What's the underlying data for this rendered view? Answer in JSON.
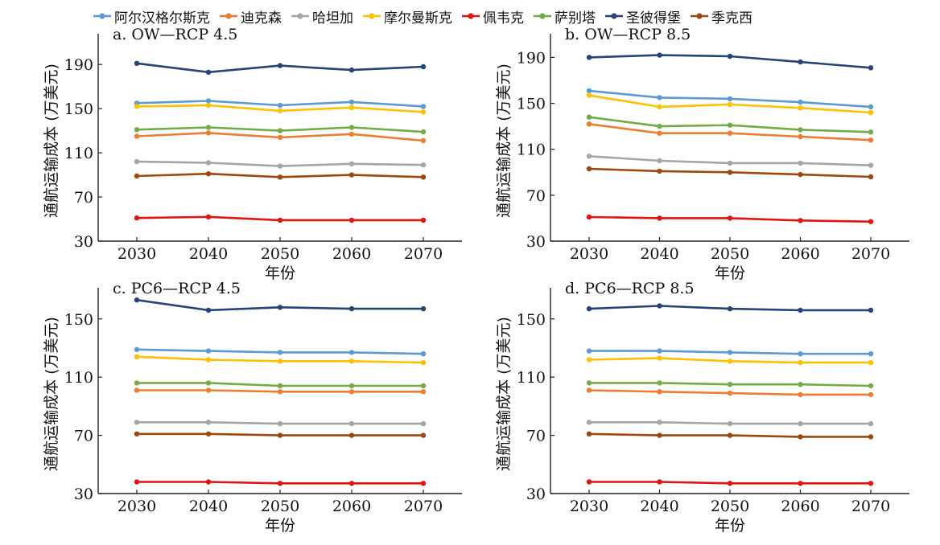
{
  "legend": {
    "position": "top",
    "series": [
      {
        "name": "阿尔汉格尔斯克",
        "color": "#5b9bd5"
      },
      {
        "name": "迪克森",
        "color": "#ed7d31"
      },
      {
        "name": "哈坦加",
        "color": "#a5a5a5"
      },
      {
        "name": "摩尔曼斯克",
        "color": "#ffc000"
      },
      {
        "name": "佩韦克",
        "color": "#e3140e"
      },
      {
        "name": "萨别塔",
        "color": "#70ad47"
      },
      {
        "name": "圣彼得堡",
        "color": "#264478"
      },
      {
        "name": "季克西",
        "color": "#9e480e"
      }
    ]
  },
  "chart_data": [
    {
      "type": "line",
      "title": "a. OW—RCP 4.5",
      "xlabel": "年份",
      "ylabel": "通航运输成本 (万美元)",
      "x": [
        2030,
        2040,
        2050,
        2060,
        2070
      ],
      "xticks": [
        2030,
        2040,
        2050,
        2060,
        2070
      ],
      "yticks": [
        30,
        70,
        110,
        150,
        190
      ],
      "ylim": [
        30,
        212
      ],
      "grid": false,
      "series": [
        {
          "name": "阿尔汉格尔斯克",
          "values": [
            155,
            157,
            153,
            156,
            152
          ]
        },
        {
          "name": "迪克森",
          "values": [
            125,
            128,
            124,
            127,
            121
          ]
        },
        {
          "name": "哈坦加",
          "values": [
            102,
            101,
            98,
            100,
            99
          ]
        },
        {
          "name": "摩尔曼斯克",
          "values": [
            152,
            153,
            148,
            151,
            147
          ]
        },
        {
          "name": "佩韦克",
          "values": [
            51,
            52,
            49,
            49,
            49
          ]
        },
        {
          "name": "萨别塔",
          "values": [
            131,
            133,
            130,
            133,
            129
          ]
        },
        {
          "name": "圣彼得堡",
          "values": [
            191,
            183,
            189,
            185,
            188
          ]
        },
        {
          "name": "季克西",
          "values": [
            89,
            91,
            88,
            90,
            88
          ]
        }
      ]
    },
    {
      "type": "line",
      "title": "b. OW—RCP 8.5",
      "xlabel": "年份",
      "ylabel": "通航运输成本 (万美元)",
      "x": [
        2030,
        2040,
        2050,
        2060,
        2070
      ],
      "xticks": [
        2030,
        2040,
        2050,
        2060,
        2070
      ],
      "yticks": [
        30,
        70,
        110,
        150,
        190
      ],
      "ylim": [
        30,
        205
      ],
      "grid": false,
      "series": [
        {
          "name": "阿尔汉格尔斯克",
          "values": [
            161,
            155,
            154,
            151,
            147
          ]
        },
        {
          "name": "迪克森",
          "values": [
            132,
            124,
            124,
            121,
            118
          ]
        },
        {
          "name": "哈坦加",
          "values": [
            104,
            100,
            98,
            98,
            96
          ]
        },
        {
          "name": "摩尔曼斯克",
          "values": [
            157,
            147,
            149,
            146,
            142
          ]
        },
        {
          "name": "佩韦克",
          "values": [
            51,
            50,
            50,
            48,
            47
          ]
        },
        {
          "name": "萨别塔",
          "values": [
            138,
            130,
            131,
            127,
            125
          ]
        },
        {
          "name": "圣彼得堡",
          "values": [
            190,
            192,
            191,
            186,
            181
          ]
        },
        {
          "name": "季克西",
          "values": [
            93,
            91,
            90,
            88,
            86
          ]
        }
      ]
    },
    {
      "type": "line",
      "title": "c. PC6—RCP 4.5",
      "xlabel": "年份",
      "ylabel": "通航运输成本 (万美元)",
      "x": [
        2030,
        2040,
        2050,
        2060,
        2070
      ],
      "xticks": [
        2030,
        2040,
        2050,
        2060,
        2070
      ],
      "yticks": [
        30,
        70,
        110,
        150
      ],
      "ylim": [
        30,
        167
      ],
      "grid": false,
      "series": [
        {
          "name": "阿尔汉格尔斯克",
          "values": [
            129,
            128,
            127,
            127,
            126
          ]
        },
        {
          "name": "迪克森",
          "values": [
            101,
            101,
            100,
            100,
            100
          ]
        },
        {
          "name": "哈坦加",
          "values": [
            79,
            79,
            78,
            78,
            78
          ]
        },
        {
          "name": "摩尔曼斯克",
          "values": [
            124,
            122,
            121,
            121,
            120
          ]
        },
        {
          "name": "佩韦克",
          "values": [
            38,
            38,
            37,
            37,
            37
          ]
        },
        {
          "name": "萨别塔",
          "values": [
            106,
            106,
            104,
            104,
            104
          ]
        },
        {
          "name": "圣彼得堡",
          "values": [
            163,
            156,
            158,
            157,
            157
          ]
        },
        {
          "name": "季克西",
          "values": [
            71,
            71,
            70,
            70,
            70
          ]
        }
      ]
    },
    {
      "type": "line",
      "title": "d. PC6—RCP 8.5",
      "xlabel": "年份",
      "ylabel": "通航运输成本 (万美元)",
      "x": [
        2030,
        2040,
        2050,
        2060,
        2070
      ],
      "xticks": [
        2030,
        2040,
        2050,
        2060,
        2070
      ],
      "yticks": [
        30,
        70,
        110,
        150
      ],
      "ylim": [
        30,
        167
      ],
      "grid": false,
      "series": [
        {
          "name": "阿尔汉格尔斯克",
          "values": [
            128,
            128,
            127,
            126,
            126
          ]
        },
        {
          "name": "迪克森",
          "values": [
            101,
            100,
            99,
            98,
            98
          ]
        },
        {
          "name": "哈坦加",
          "values": [
            79,
            79,
            78,
            78,
            78
          ]
        },
        {
          "name": "摩尔曼斯克",
          "values": [
            122,
            123,
            121,
            120,
            120
          ]
        },
        {
          "name": "佩韦克",
          "values": [
            38,
            38,
            37,
            37,
            37
          ]
        },
        {
          "name": "萨别塔",
          "values": [
            106,
            106,
            105,
            105,
            104
          ]
        },
        {
          "name": "圣彼得堡",
          "values": [
            157,
            159,
            157,
            156,
            156
          ]
        },
        {
          "name": "季克西",
          "values": [
            71,
            70,
            70,
            69,
            69
          ]
        }
      ]
    }
  ]
}
